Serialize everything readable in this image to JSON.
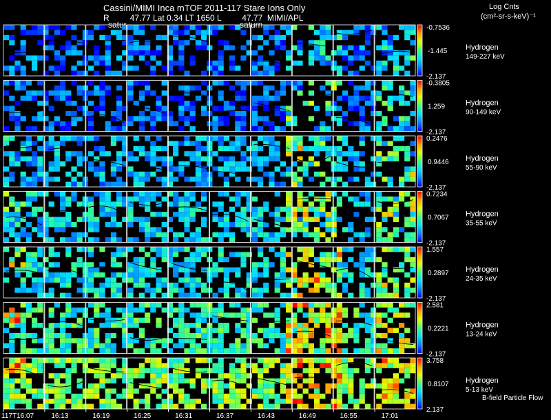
{
  "header": {
    "title": "Cassini/MIMI Inca mTOF  2011-117   Stare   Ions Only",
    "subtitle": "R         47.77 Lat 0.34 LT 1650 L         47.77  MIMI/APL",
    "target_label_1": "satur",
    "target_label_2": "saturn"
  },
  "units": {
    "line1": "Log Cnts",
    "line2": "(cm²-sr-s-keV)⁻¹"
  },
  "footer": {
    "flow_label": "B-field Particle Flow"
  },
  "chart_data": {
    "type": "heatmap",
    "title": "Cassini/MIMI Inca mTOF  2011-117   Stare   Ions Only",
    "x_tick_labels": [
      "117T16:07",
      "16:13",
      "16:19",
      "16:25",
      "16:31",
      "16:37",
      "16:43",
      "16:49",
      "16:55",
      "17:01"
    ],
    "colorscale": [
      "#0000ff",
      "#0080ff",
      "#00e0ff",
      "#40ff80",
      "#e0ff00",
      "#ffa000",
      "#ff0000"
    ],
    "panels": [
      {
        "species": "Hydrogen",
        "energy": "149-227 keV",
        "cbar_max": "-0.7536",
        "cbar_mid": "-1.445",
        "cbar_min": "-2.137",
        "level": 0.15,
        "right_boost": 0.35,
        "left_boost": 0.05
      },
      {
        "species": "Hydrogen",
        "energy": "90-149 keV",
        "cbar_max": "-0.3805",
        "cbar_mid": "1.259",
        "cbar_min": "-2.137",
        "level": 0.12,
        "right_boost": 0.45,
        "left_boost": 0.05
      },
      {
        "species": "Hydrogen",
        "energy": "55-90 keV",
        "cbar_max": "0.2476",
        "cbar_mid": "0.9446",
        "cbar_min": "-2.137",
        "level": 0.25,
        "right_boost": 0.45,
        "left_boost": 0.15
      },
      {
        "species": "Hydrogen",
        "energy": "35-55 keV",
        "cbar_max": "0.7234",
        "cbar_mid": "0.7067",
        "cbar_min": "-2.137",
        "level": 0.3,
        "right_boost": 0.45,
        "left_boost": 0.45
      },
      {
        "species": "Hydrogen",
        "energy": "24-35 keV",
        "cbar_max": "1.557",
        "cbar_mid": "0.2897",
        "cbar_min": "-2.137",
        "level": 0.35,
        "right_boost": 0.45,
        "left_boost": 0.5
      },
      {
        "species": "Hydrogen",
        "energy": "13-24 keV",
        "cbar_max": "2.581",
        "cbar_mid": "0.2221",
        "cbar_min": "-2.137",
        "level": 0.42,
        "right_boost": 0.45,
        "left_boost": 0.55
      },
      {
        "species": "Hydrogen",
        "energy": "5-13 keV",
        "cbar_max": "3.758",
        "cbar_mid": "0.8107",
        "cbar_min": "2.137",
        "level": 0.55,
        "right_boost": 0.35,
        "left_boost": 0.45
      }
    ]
  }
}
